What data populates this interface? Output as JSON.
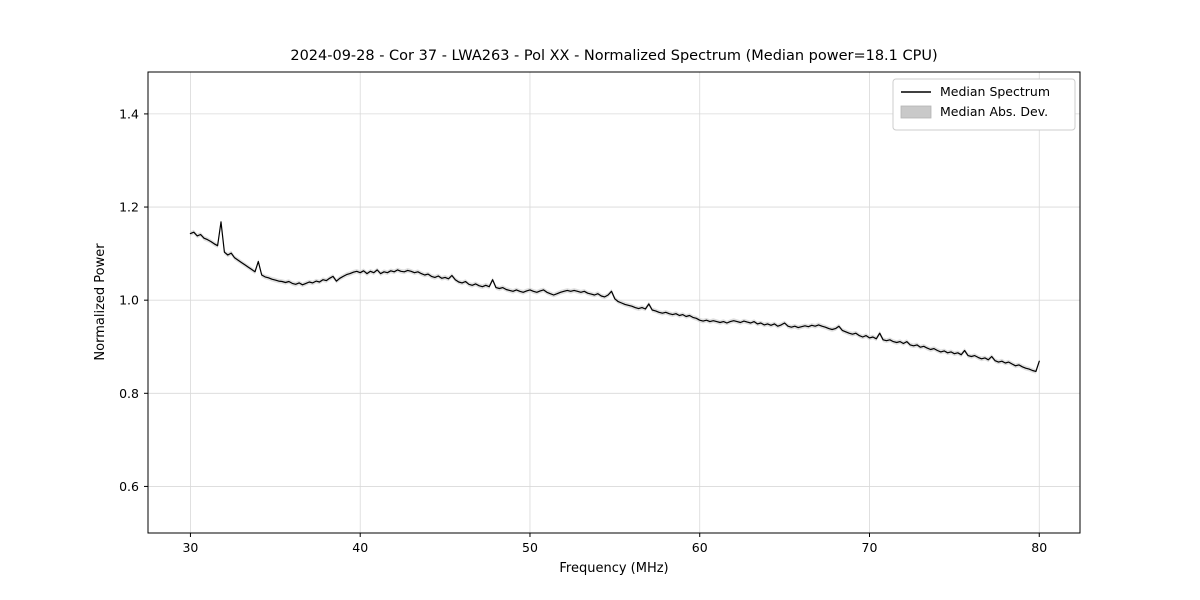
{
  "chart_data": {
    "type": "line",
    "title": "2024-09-28 - Cor 37 - LWA263 - Pol XX - Normalized Spectrum (Median power=18.1 CPU)",
    "xlabel": "Frequency (MHz)",
    "ylabel": "Normalized Power",
    "xlim": [
      27.5,
      82.4
    ],
    "ylim": [
      0.5,
      1.49
    ],
    "xticks": [
      30,
      40,
      50,
      60,
      70,
      80
    ],
    "xtick_labels": [
      "30",
      "40",
      "50",
      "60",
      "70",
      "80"
    ],
    "yticks": [
      0.6,
      0.8,
      1.0,
      1.2,
      1.4
    ],
    "ytick_labels": [
      "0.6",
      "0.8",
      "1.0",
      "1.2",
      "1.4"
    ],
    "grid": true,
    "grid_color": "#d9d9d9",
    "legend_position": "upper right",
    "line_color": "#000000",
    "band_color": "#c9c9c9",
    "series": [
      {
        "name": "Median Spectrum",
        "type": "line",
        "color": "#000000",
        "x_start": 30.0,
        "x_step": 0.2,
        "values": [
          1.143,
          1.146,
          1.138,
          1.141,
          1.133,
          1.13,
          1.126,
          1.121,
          1.117,
          1.168,
          1.103,
          1.097,
          1.101,
          1.091,
          1.086,
          1.081,
          1.076,
          1.071,
          1.066,
          1.061,
          1.083,
          1.054,
          1.05,
          1.048,
          1.045,
          1.043,
          1.041,
          1.04,
          1.038,
          1.04,
          1.036,
          1.034,
          1.037,
          1.033,
          1.036,
          1.039,
          1.037,
          1.041,
          1.039,
          1.044,
          1.042,
          1.047,
          1.051,
          1.041,
          1.047,
          1.051,
          1.055,
          1.057,
          1.06,
          1.062,
          1.059,
          1.063,
          1.057,
          1.062,
          1.059,
          1.065,
          1.057,
          1.061,
          1.059,
          1.063,
          1.061,
          1.065,
          1.062,
          1.061,
          1.064,
          1.062,
          1.059,
          1.061,
          1.057,
          1.054,
          1.056,
          1.051,
          1.049,
          1.052,
          1.047,
          1.049,
          1.046,
          1.053,
          1.044,
          1.039,
          1.037,
          1.04,
          1.034,
          1.032,
          1.035,
          1.031,
          1.029,
          1.032,
          1.029,
          1.044,
          1.027,
          1.025,
          1.027,
          1.023,
          1.021,
          1.019,
          1.022,
          1.019,
          1.017,
          1.02,
          1.022,
          1.019,
          1.017,
          1.02,
          1.022,
          1.017,
          1.014,
          1.011,
          1.014,
          1.017,
          1.019,
          1.021,
          1.019,
          1.021,
          1.019,
          1.017,
          1.019,
          1.015,
          1.013,
          1.011,
          1.014,
          1.009,
          1.007,
          1.011,
          1.019,
          1.003,
          0.997,
          0.994,
          0.991,
          0.989,
          0.987,
          0.984,
          0.982,
          0.984,
          0.981,
          0.992,
          0.979,
          0.977,
          0.974,
          0.972,
          0.974,
          0.971,
          0.969,
          0.971,
          0.967,
          0.969,
          0.965,
          0.967,
          0.963,
          0.961,
          0.957,
          0.955,
          0.957,
          0.954,
          0.956,
          0.954,
          0.952,
          0.954,
          0.951,
          0.954,
          0.956,
          0.954,
          0.952,
          0.955,
          0.953,
          0.951,
          0.954,
          0.949,
          0.951,
          0.947,
          0.949,
          0.946,
          0.949,
          0.944,
          0.947,
          0.951,
          0.944,
          0.942,
          0.944,
          0.941,
          0.943,
          0.945,
          0.943,
          0.946,
          0.944,
          0.947,
          0.944,
          0.942,
          0.939,
          0.937,
          0.939,
          0.944,
          0.935,
          0.932,
          0.929,
          0.927,
          0.929,
          0.924,
          0.921,
          0.924,
          0.919,
          0.921,
          0.917,
          0.929,
          0.915,
          0.913,
          0.915,
          0.911,
          0.909,
          0.911,
          0.907,
          0.911,
          0.904,
          0.902,
          0.904,
          0.899,
          0.901,
          0.897,
          0.894,
          0.896,
          0.892,
          0.889,
          0.891,
          0.887,
          0.889,
          0.885,
          0.887,
          0.883,
          0.892,
          0.881,
          0.879,
          0.881,
          0.877,
          0.874,
          0.876,
          0.872,
          0.879,
          0.87,
          0.867,
          0.869,
          0.865,
          0.867,
          0.863,
          0.859,
          0.861,
          0.857,
          0.854,
          0.852,
          0.849,
          0.847,
          0.869
        ]
      },
      {
        "name": "Median Abs. Dev.",
        "type": "band",
        "color": "#c9c9c9",
        "halfwidth": 0.005
      }
    ]
  }
}
